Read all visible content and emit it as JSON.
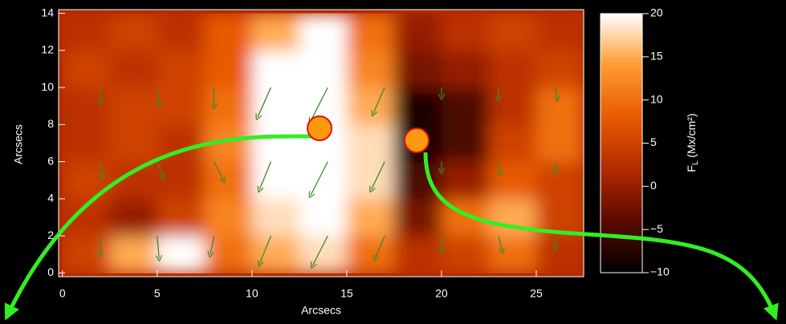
{
  "chart_data": {
    "type": "heatmap",
    "xlabel": "Arcsecs",
    "ylabel": "Arcsecs",
    "xlim": [
      -0.2,
      27.5
    ],
    "ylim": [
      -0.2,
      14.2
    ],
    "xticks": [
      0,
      5,
      10,
      15,
      20,
      25
    ],
    "yticks": [
      0,
      2,
      4,
      6,
      8,
      10,
      12,
      14
    ],
    "x_edges": [
      0,
      2.5,
      5,
      7.5,
      10,
      12.5,
      15,
      17.5,
      20,
      22.5,
      25,
      27.5
    ],
    "y_edges": [
      0,
      2,
      4,
      6,
      8,
      10,
      12,
      14
    ],
    "z": [
      [
        5,
        15,
        20,
        10,
        15,
        18,
        10,
        3,
        5,
        10,
        3
      ],
      [
        3,
        0,
        5,
        12,
        18,
        20,
        15,
        -2,
        10,
        15,
        5
      ],
      [
        5,
        3,
        3,
        10,
        20,
        20,
        18,
        -5,
        0,
        8,
        5
      ],
      [
        3,
        5,
        3,
        12,
        20,
        20,
        18,
        -8,
        -5,
        5,
        10
      ],
      [
        3,
        5,
        5,
        10,
        20,
        20,
        15,
        -8,
        -5,
        3,
        10
      ],
      [
        5,
        3,
        5,
        8,
        20,
        20,
        12,
        -2,
        0,
        3,
        5
      ],
      [
        3,
        5,
        3,
        8,
        15,
        20,
        10,
        0,
        3,
        5,
        3
      ]
    ],
    "colormap": [
      "#000000",
      "#5a0a00",
      "#b32a00",
      "#e85a00",
      "#ff9a30",
      "#ffffff"
    ],
    "clim": [
      -10,
      20
    ],
    "colorbar_ticks": [
      {
        "value": -10,
        "label": "−10"
      },
      {
        "value": -5,
        "label": "−5"
      },
      0,
      5,
      10,
      15,
      20
    ],
    "colorbar_label": {
      "symbol": "F",
      "subscript": "L",
      "unit": " (Mx/cm²)"
    },
    "vectors": {
      "color": "#3a8a2a",
      "x": [
        2,
        5,
        8,
        11,
        14,
        17,
        20,
        23,
        26,
        2,
        5,
        8,
        11,
        14,
        17,
        20,
        23,
        26,
        2,
        5,
        8,
        11,
        14,
        17,
        20,
        23,
        26
      ],
      "y": [
        2,
        2,
        2,
        2,
        2,
        2,
        2,
        2,
        2,
        6,
        6,
        6,
        6,
        6,
        6,
        6,
        6,
        6,
        10,
        10,
        10,
        10,
        10,
        10,
        10,
        10,
        10
      ],
      "u": [
        0,
        0.1,
        -0.2,
        -0.6,
        -0.8,
        -0.5,
        0,
        0.2,
        0,
        0.1,
        0.3,
        0.5,
        -0.6,
        -0.9,
        -0.7,
        0,
        0.1,
        0,
        0,
        0.1,
        0,
        -0.7,
        -0.9,
        -0.6,
        0,
        0,
        0.1
      ],
      "v": [
        -1,
        -1.2,
        -1,
        -1.5,
        -1.6,
        -1.2,
        -0.8,
        -0.8,
        -0.6,
        -0.8,
        -0.8,
        -1,
        -1.5,
        -1.8,
        -1.5,
        -0.5,
        -0.6,
        -0.5,
        -0.8,
        -0.9,
        -1,
        -1.6,
        -1.8,
        -1.4,
        -0.5,
        -0.6,
        -0.6
      ]
    }
  }
}
